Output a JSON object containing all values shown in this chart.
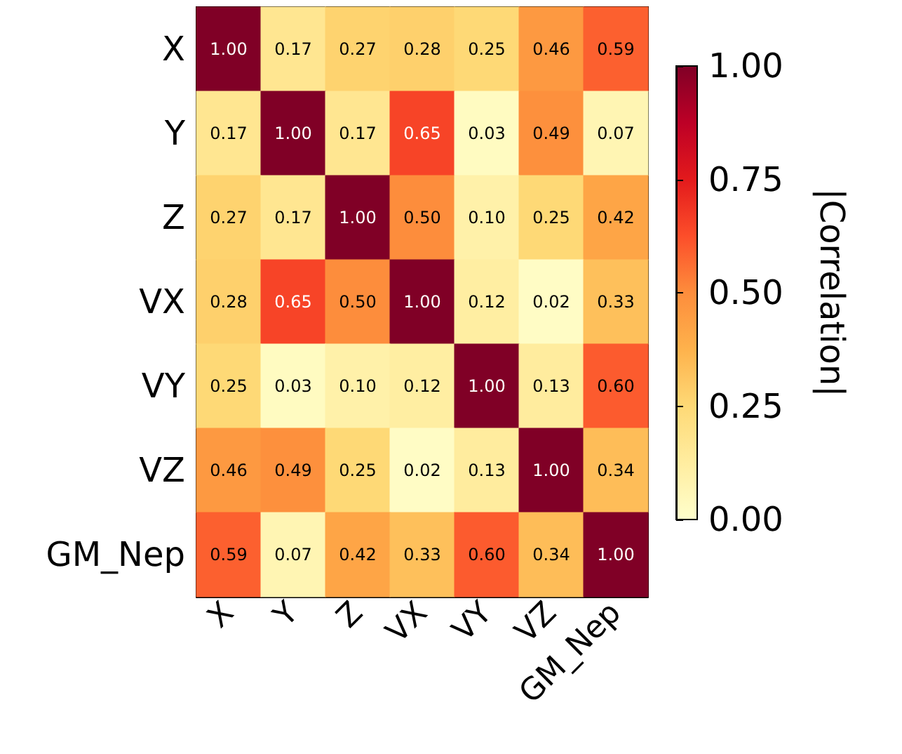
{
  "chart_data": {
    "type": "heatmap",
    "clabel": "|Correlation|",
    "categories": [
      "X",
      "Y",
      "Z",
      "VX",
      "VY",
      "VZ",
      "GM_Nep"
    ],
    "y_categories": [
      "X",
      "Y",
      "Z",
      "VX",
      "VY",
      "VZ",
      "GM_Nep"
    ],
    "cells": [
      [
        1.0,
        0.17,
        0.27,
        0.28,
        0.25,
        0.46,
        0.59
      ],
      [
        0.17,
        1.0,
        0.17,
        0.65,
        0.03,
        0.49,
        0.07
      ],
      [
        0.27,
        0.17,
        1.0,
        0.5,
        0.1,
        0.25,
        0.42
      ],
      [
        0.28,
        0.65,
        0.5,
        1.0,
        0.12,
        0.02,
        0.33
      ],
      [
        0.25,
        0.03,
        0.1,
        0.12,
        1.0,
        0.13,
        0.6
      ],
      [
        0.46,
        0.49,
        0.25,
        0.02,
        0.13,
        1.0,
        0.34
      ],
      [
        0.59,
        0.07,
        0.42,
        0.33,
        0.6,
        0.34,
        1.0
      ]
    ],
    "cell_labels": [
      [
        "1.00",
        "0.17",
        "0.27",
        "0.28",
        "0.25",
        "0.46",
        "0.59"
      ],
      [
        "0.17",
        "1.00",
        "0.17",
        "0.65",
        "0.03",
        "0.49",
        "0.07"
      ],
      [
        "0.27",
        "0.17",
        "1.00",
        "0.50",
        "0.10",
        "0.25",
        "0.42"
      ],
      [
        "0.28",
        "0.65",
        "0.50",
        "1.00",
        "0.12",
        "0.02",
        "0.33"
      ],
      [
        "0.25",
        "0.03",
        "0.10",
        "0.12",
        "1.00",
        "0.13",
        "0.60"
      ],
      [
        "0.46",
        "0.49",
        "0.25",
        "0.02",
        "0.13",
        "1.00",
        "0.34"
      ],
      [
        "0.59",
        "0.07",
        "0.42",
        "0.33",
        "0.60",
        "0.34",
        "1.00"
      ]
    ],
    "clim": [
      0,
      1
    ],
    "cticks": [
      {
        "value": 0,
        "label": "0.00"
      },
      {
        "value": 0.25,
        "label": "0.25"
      },
      {
        "value": 0.5,
        "label": "0.50"
      },
      {
        "value": 0.75,
        "label": "0.75"
      },
      {
        "value": 1,
        "label": "1.00"
      }
    ],
    "data_labels": true
  }
}
